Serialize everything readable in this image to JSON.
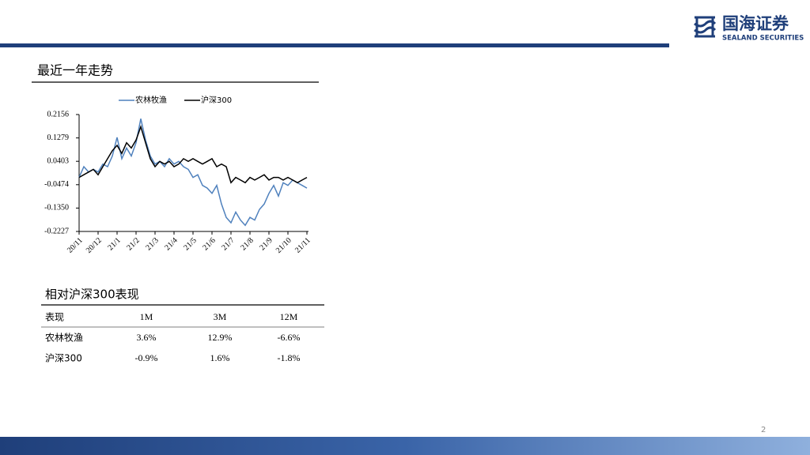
{
  "header": {
    "brand": "国海证券",
    "brand_en": "SEALAND SECURITIES"
  },
  "section1": {
    "title": "最近一年走势"
  },
  "chart_data": {
    "type": "line",
    "categories": [
      "20/11",
      null,
      null,
      null,
      "20/12",
      null,
      null,
      null,
      "21/1",
      null,
      null,
      null,
      "21/2",
      null,
      null,
      null,
      "21/3",
      null,
      null,
      null,
      "21/4",
      null,
      null,
      null,
      "21/5",
      null,
      null,
      null,
      "21/6",
      null,
      null,
      null,
      "21/7",
      null,
      null,
      null,
      "21/8",
      null,
      null,
      null,
      "21/9",
      null,
      null,
      null,
      "21/10",
      null,
      null,
      null,
      "21/11"
    ],
    "series": [
      {
        "name": "农林牧渔",
        "color": "#4f81bd",
        "values": [
          -0.02,
          0.02,
          0.0,
          0.01,
          0.0,
          0.03,
          0.02,
          0.06,
          0.13,
          0.05,
          0.09,
          0.06,
          0.11,
          0.2,
          0.12,
          0.06,
          0.03,
          0.04,
          0.02,
          0.05,
          0.03,
          0.04,
          0.02,
          0.01,
          -0.02,
          -0.01,
          -0.05,
          -0.06,
          -0.08,
          -0.05,
          -0.12,
          -0.17,
          -0.19,
          -0.15,
          -0.18,
          -0.2,
          -0.17,
          -0.18,
          -0.14,
          -0.12,
          -0.08,
          -0.05,
          -0.09,
          -0.04,
          -0.05,
          -0.03,
          -0.04,
          -0.05,
          -0.06
        ]
      },
      {
        "name": "沪深300",
        "color": "#000000",
        "values": [
          -0.02,
          -0.01,
          0.0,
          0.01,
          -0.01,
          0.02,
          0.05,
          0.08,
          0.1,
          0.07,
          0.11,
          0.09,
          0.12,
          0.17,
          0.11,
          0.05,
          0.02,
          0.04,
          0.03,
          0.04,
          0.02,
          0.03,
          0.05,
          0.04,
          0.05,
          0.04,
          0.03,
          0.04,
          0.05,
          0.02,
          0.03,
          0.02,
          -0.04,
          -0.02,
          -0.03,
          -0.04,
          -0.02,
          -0.03,
          -0.02,
          -0.01,
          -0.03,
          -0.02,
          -0.02,
          -0.03,
          -0.02,
          -0.03,
          -0.04,
          -0.03,
          -0.02
        ]
      }
    ],
    "ylim": [
      -0.2227,
      0.2156
    ],
    "yticks": [
      0.2156,
      0.1279,
      0.0403,
      -0.0474,
      {
        "value": -0.135,
        "label": "-0.1350"
      },
      -0.2227
    ]
  },
  "section2": {
    "title": "相对沪深300表现"
  },
  "table": {
    "header": [
      "表现",
      "1M",
      "3M",
      "12M"
    ],
    "rows": [
      [
        "农林牧渔",
        "3.6%",
        "12.9%",
        "-6.6%"
      ],
      [
        "沪深300",
        "-0.9%",
        "1.6%",
        "-1.8%"
      ]
    ]
  },
  "footer": {
    "page": "2"
  }
}
